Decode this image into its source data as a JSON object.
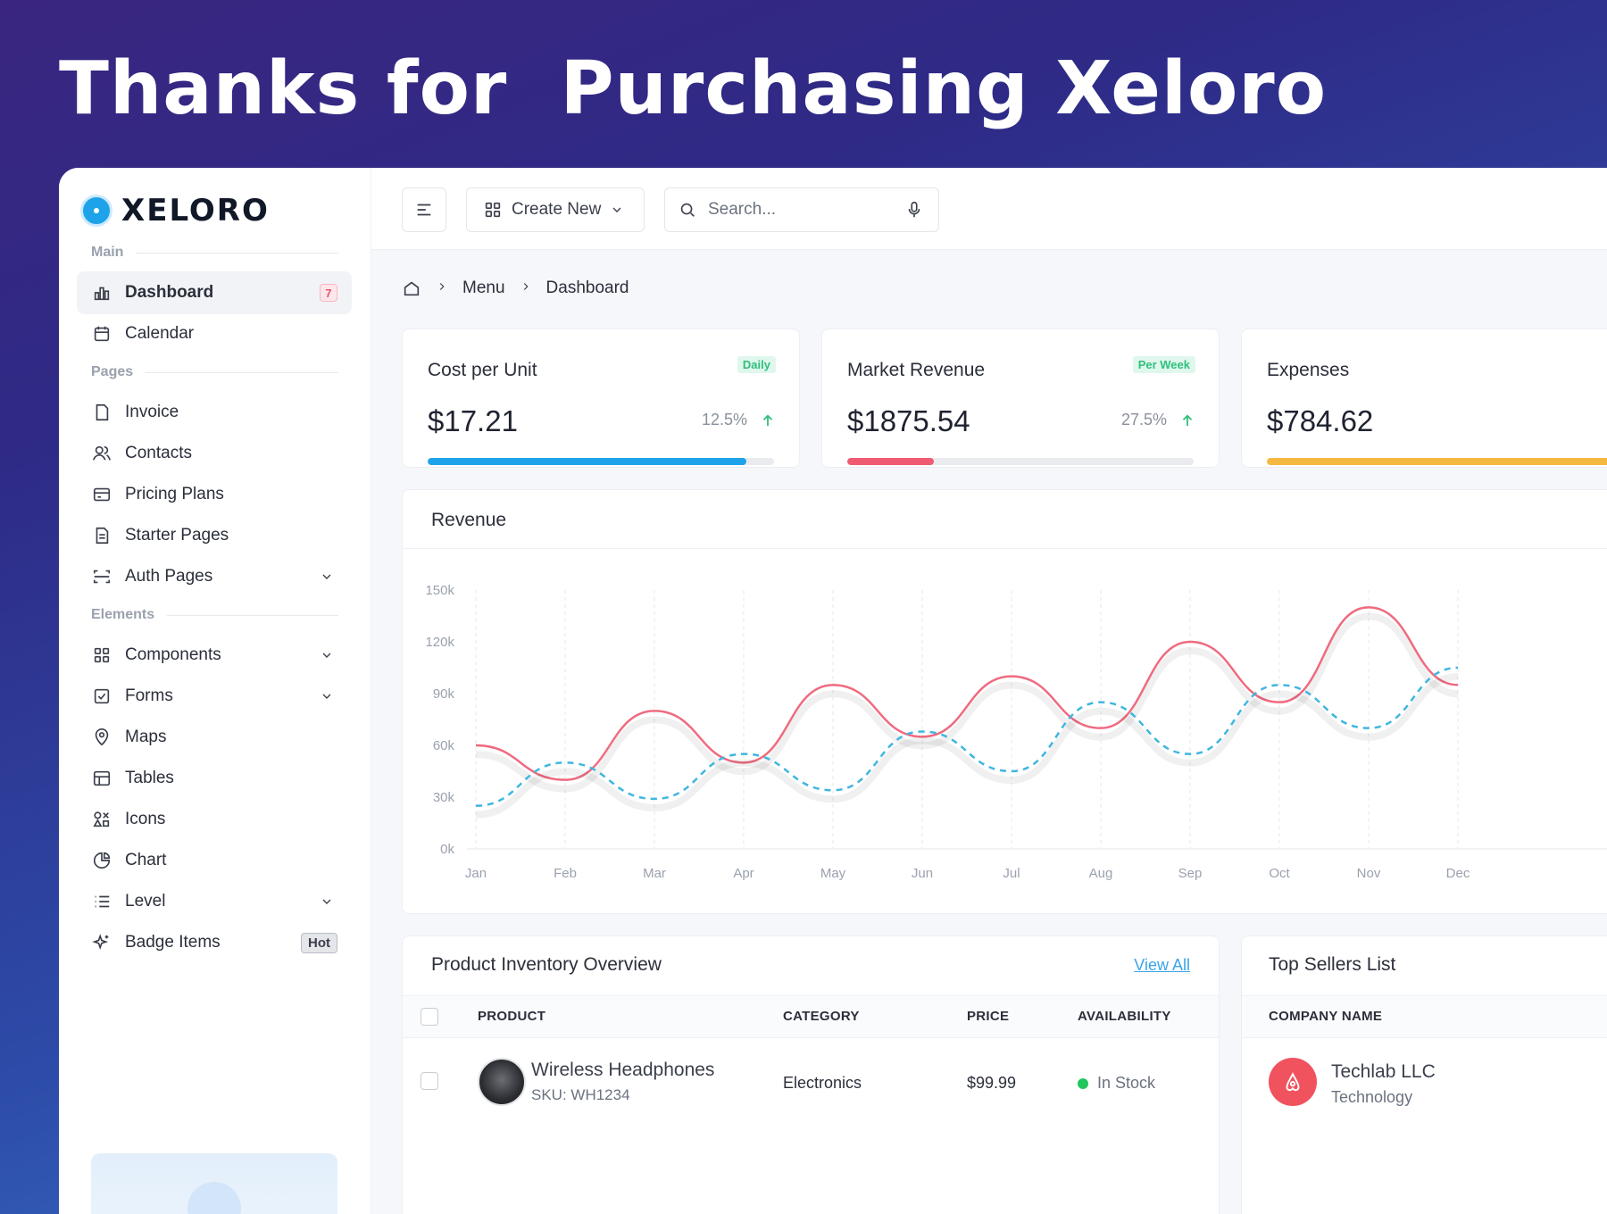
{
  "hero": {
    "title": "Thanks for  Purchasing Xeloro"
  },
  "brand": {
    "name": "XELORO",
    "accent": "#1ea3ea"
  },
  "sidebar": {
    "sections": [
      {
        "label": "Main"
      },
      {
        "label": "Pages"
      },
      {
        "label": "Elements"
      }
    ],
    "items": [
      {
        "label": "Dashboard",
        "icon": "dashboard-icon",
        "badge": "7",
        "active": true
      },
      {
        "label": "Calendar",
        "icon": "calendar-icon"
      },
      {
        "label": "Invoice",
        "icon": "invoice-icon"
      },
      {
        "label": "Contacts",
        "icon": "contacts-icon"
      },
      {
        "label": "Pricing Plans",
        "icon": "pricing-icon"
      },
      {
        "label": "Starter Pages",
        "icon": "file-icon"
      },
      {
        "label": "Auth Pages",
        "icon": "auth-icon",
        "expandable": true
      },
      {
        "label": "Components",
        "icon": "components-icon",
        "expandable": true
      },
      {
        "label": "Forms",
        "icon": "forms-icon",
        "expandable": true
      },
      {
        "label": "Maps",
        "icon": "map-pin-icon"
      },
      {
        "label": "Tables",
        "icon": "table-icon"
      },
      {
        "label": "Icons",
        "icon": "shapes-icon"
      },
      {
        "label": "Chart",
        "icon": "pie-chart-icon"
      },
      {
        "label": "Level",
        "icon": "list-icon",
        "expandable": true
      },
      {
        "label": "Badge Items",
        "icon": "sparkle-icon",
        "badge": "Hot"
      }
    ]
  },
  "topbar": {
    "create_label": "Create New",
    "search_placeholder": "Search..."
  },
  "breadcrumb": {
    "items": [
      "Menu",
      "Dashboard"
    ]
  },
  "stats": [
    {
      "title": "Cost per Unit",
      "tag": "Daily",
      "value": "$17.21",
      "change": "12.5%",
      "progress": 0.92,
      "color": "#1ea3ea"
    },
    {
      "title": "Market Revenue",
      "tag": "Per Week",
      "value": "$1875.54",
      "change": "27.5%",
      "progress": 0.25,
      "color": "#ef5b72"
    },
    {
      "title": "Expenses",
      "value": "$784.62",
      "color": "#f5b942"
    }
  ],
  "revenue": {
    "title": "Revenue"
  },
  "chart_data": {
    "type": "line",
    "title": "Revenue",
    "categories": [
      "Jan",
      "Feb",
      "Mar",
      "Apr",
      "May",
      "Jun",
      "Jul",
      "Aug",
      "Sep",
      "Oct",
      "Nov",
      "Dec"
    ],
    "y_ticks": [
      "0k",
      "30k",
      "60k",
      "90k",
      "120k",
      "150k"
    ],
    "ylim": [
      0,
      150000
    ],
    "series": [
      {
        "values": [
          60000,
          40000,
          80000,
          50000,
          95000,
          65000,
          100000,
          70000,
          120000,
          85000,
          140000,
          95000
        ],
        "color": "#ef6b80",
        "style": "solid"
      },
      {
        "values": [
          25000,
          50000,
          29000,
          55000,
          34000,
          68000,
          45000,
          85000,
          55000,
          95000,
          70000,
          105000
        ],
        "color": "#3fb6e0",
        "style": "dashed"
      }
    ],
    "grid": "vertical-dashed",
    "legend": "none"
  },
  "inventory": {
    "title": "Product Inventory Overview",
    "view_all": "View All",
    "columns": [
      "PRODUCT",
      "CATEGORY",
      "PRICE",
      "AVAILABILITY"
    ],
    "rows": [
      {
        "name": "Wireless Headphones",
        "sku": "SKU: WH1234",
        "category": "Electronics",
        "price": "$99.99",
        "availability": "In Stock"
      }
    ]
  },
  "top_sellers": {
    "title": "Top Sellers List",
    "column": "COMPANY NAME",
    "rows": [
      {
        "name": "Techlab LLC",
        "sector": "Technology"
      }
    ]
  }
}
